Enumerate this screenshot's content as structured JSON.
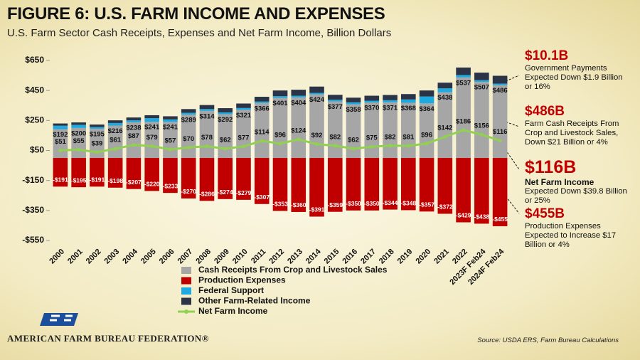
{
  "header": {
    "title": "FIGURE 6: U.S. FARM INCOME AND EXPENSES",
    "subtitle": "U.S. Farm Sector Cash Receipts, Expenses and Net Farm Income, Billion Dollars"
  },
  "chart_data": {
    "type": "bar",
    "categories": [
      "2000",
      "2001",
      "2002",
      "2003",
      "2004",
      "2005",
      "2006",
      "2007",
      "2008",
      "2009",
      "2010",
      "2011",
      "2012",
      "2013",
      "2014",
      "2015",
      "2016",
      "2017",
      "2018",
      "2019",
      "2020",
      "2021",
      "2022",
      "2023F Feb24",
      "2024F Feb24"
    ],
    "ylim": [
      -550,
      650
    ],
    "yticks": [
      {
        "value": 650,
        "label": "$650"
      },
      {
        "value": 450,
        "label": "$450"
      },
      {
        "value": 250,
        "label": "$250"
      },
      {
        "value": 50,
        "label": "$50"
      },
      {
        "value": -150,
        "label": "-$150"
      },
      {
        "value": -350,
        "label": "-$350"
      },
      {
        "value": -550,
        "label": "-$550"
      }
    ],
    "series": [
      {
        "name": "Cash Receipts From Crop and Livestock Sales",
        "type": "bar",
        "color": "#a6a6a6",
        "values": [
          192,
          200,
          195,
          216,
          238,
          241,
          241,
          289,
          314,
          292,
          321,
          366,
          401,
          404,
          424,
          377,
          358,
          370,
          371,
          368,
          364,
          438,
          537,
          507,
          486
        ],
        "value_labels": [
          "$192",
          "$200",
          "$195",
          "$216",
          "$238",
          "$241",
          "$241",
          "$289",
          "$314",
          "$292",
          "$321",
          "$366",
          "$401",
          "$404",
          "$424",
          "$377",
          "$358",
          "$370",
          "$371",
          "$368",
          "$364",
          "$438",
          "$537",
          "$507",
          "$486"
        ]
      },
      {
        "name": "Production Expenses",
        "type": "bar",
        "color": "#c00000",
        "values": [
          -191,
          -195,
          -191,
          -198,
          -207,
          -220,
          -233,
          -270,
          -286,
          -274,
          -279,
          -307,
          -353,
          -360,
          -391,
          -359,
          -350,
          -350,
          -344,
          -348,
          -357,
          -372,
          -429,
          -438,
          -455
        ],
        "value_labels": [
          "-$191",
          "-$195",
          "-$191",
          "-$198",
          "-$207",
          "-$220",
          "-$233",
          "-$270",
          "-$286",
          "-$274",
          "-$279",
          "-$307",
          "-$353",
          "-$360",
          "-$391",
          "-$359",
          "-$350",
          "-$350",
          "-$344",
          "-$348",
          "-$357",
          "-$372",
          "-$429",
          "-$438",
          "-$455"
        ]
      },
      {
        "name": "Federal Support",
        "type": "bar",
        "color": "#1fa9e1",
        "values": [
          23,
          21,
          11,
          17,
          13,
          24,
          16,
          12,
          12,
          12,
          12,
          10,
          11,
          11,
          10,
          11,
          13,
          12,
          14,
          22,
          46,
          26,
          16,
          12,
          10
        ]
      },
      {
        "name": "Other Farm-Related Income",
        "type": "bar",
        "color": "#2b3447",
        "values": [
          15,
          16,
          17,
          18,
          19,
          20,
          21,
          25,
          27,
          28,
          30,
          32,
          38,
          40,
          42,
          33,
          31,
          33,
          35,
          36,
          40,
          38,
          50,
          50,
          52
        ]
      },
      {
        "name": "Net Farm Income",
        "type": "line",
        "color": "#92d050",
        "values": [
          51,
          55,
          39,
          61,
          87,
          79,
          57,
          70,
          78,
          62,
          77,
          114,
          96,
          124,
          92,
          82,
          62,
          75,
          82,
          81,
          96,
          142,
          186,
          156,
          116
        ],
        "value_labels": [
          "$51",
          "$55",
          "$39",
          "$61",
          "$87",
          "$79",
          "$57",
          "$70",
          "$78",
          "$62",
          "$77",
          "$114",
          "$96",
          "$124",
          "$92",
          "$82",
          "$62",
          "$75",
          "$82",
          "$81",
          "$96",
          "$142",
          "$186",
          "$156",
          "$116"
        ]
      }
    ]
  },
  "annotations": [
    {
      "headline": "$10.1B",
      "text": "Government Payments Expected Down $1.9 Billion or 16%"
    },
    {
      "headline": "$486B",
      "text": "Farm Cash Receipts From Crop and Livestock Sales, Down $21 Billion or 4%"
    },
    {
      "headline": "$116B",
      "subhead": "Net Farm Income",
      "text": "Expected Down $39.8 Billion or 25%"
    },
    {
      "headline": "$455B",
      "text": "Production Expenses Expected to Increase $17 Billion or 4%"
    }
  ],
  "footer": {
    "organization": "AMERICAN FARM BUREAU FEDERATION®",
    "source": "Source: USDA ERS, Farm Bureau Calculations"
  }
}
